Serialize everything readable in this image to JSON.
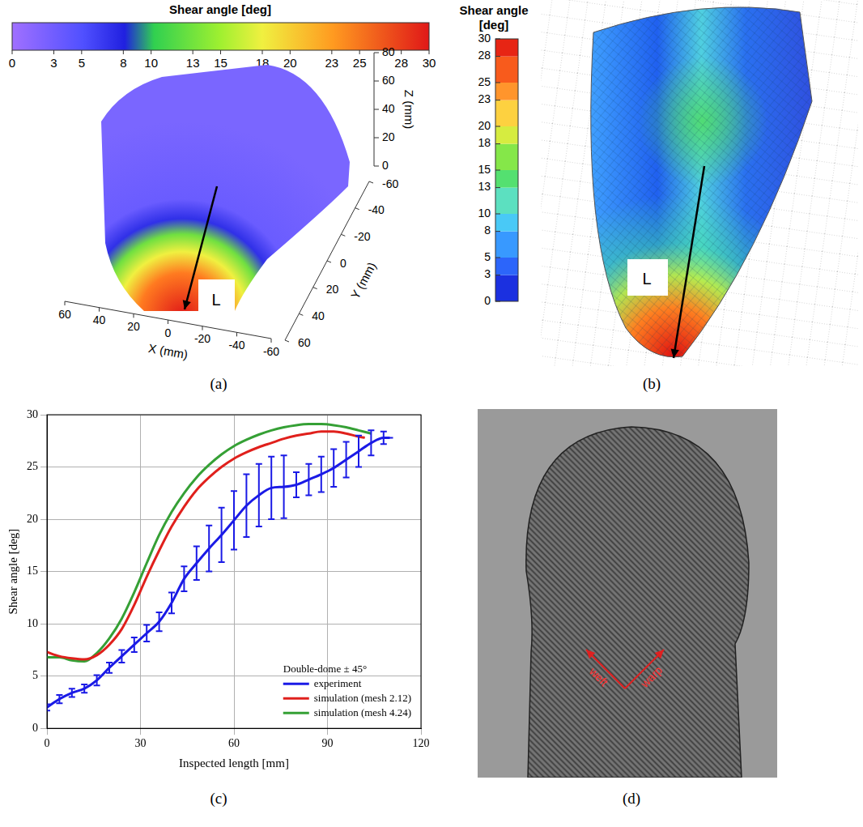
{
  "panels": {
    "a": {
      "label": "(a)",
      "type": "3d_contour_map",
      "colorbar": {
        "title": "Shear angle [deg]",
        "range": [
          0,
          30
        ],
        "ticks": [
          0,
          3,
          5,
          8,
          10,
          13,
          15,
          18,
          20,
          23,
          25,
          28,
          30
        ]
      },
      "axes": {
        "x": {
          "title": "X (mm)",
          "ticks": [
            60,
            40,
            20,
            0,
            -20,
            -40,
            -60
          ]
        },
        "y": {
          "title": "Y (mm)",
          "ticks": [
            60,
            40,
            20,
            0,
            -20,
            -40,
            -60
          ]
        },
        "z": {
          "title": "Z (mm)",
          "ticks": [
            0,
            20,
            40,
            60,
            80
          ]
        }
      },
      "annotations": [
        "L"
      ]
    },
    "b": {
      "label": "(b)",
      "type": "contour_map",
      "colorbar": {
        "title": "Shear angle [deg]",
        "range": [
          0,
          30
        ],
        "ticks": [
          30,
          28,
          25,
          23,
          20,
          18,
          15,
          13,
          10,
          8,
          5,
          3,
          0
        ]
      },
      "annotations": [
        "L"
      ]
    },
    "d": {
      "label": "(d)",
      "type": "photograph",
      "annotations": [
        "weft",
        "warp"
      ]
    }
  },
  "chart_data": {
    "label": "(c)",
    "type": "line",
    "annotation": "Double-dome ± 45°",
    "x_label": "Inspected length [mm]",
    "y_label": "Shear angle [deg]",
    "xlim": [
      0,
      120
    ],
    "xticks": [
      0,
      30,
      60,
      90,
      120
    ],
    "ylim": [
      0,
      30
    ],
    "yticks": [
      0,
      5,
      10,
      15,
      20,
      25,
      30
    ],
    "grid": true,
    "legend": "lower right",
    "series": [
      {
        "name": "experiment",
        "color": "#1a1ae6",
        "x": [
          0,
          4,
          8,
          12,
          16,
          20,
          24,
          28,
          32,
          36,
          40,
          44,
          48,
          52,
          56,
          60,
          64,
          68,
          72,
          76,
          80,
          84,
          88,
          92,
          96,
          100,
          104,
          108,
          110
        ],
        "values": [
          2.0,
          2.8,
          3.4,
          3.8,
          4.6,
          5.8,
          6.9,
          8.0,
          9.1,
          10.2,
          12.0,
          14.3,
          15.8,
          17.2,
          18.5,
          19.9,
          21.3,
          22.3,
          23.0,
          23.1,
          23.3,
          23.8,
          24.3,
          24.9,
          25.7,
          26.5,
          27.3,
          27.8,
          27.8
        ],
        "errors": [
          0.3,
          0.4,
          0.4,
          0.4,
          0.5,
          0.5,
          0.6,
          0.7,
          0.8,
          0.9,
          1.0,
          1.2,
          1.6,
          2.2,
          2.6,
          2.8,
          3.0,
          3.0,
          3.0,
          3.0,
          1.2,
          1.5,
          1.7,
          1.8,
          1.7,
          1.5,
          1.2,
          0.6,
          0
        ]
      },
      {
        "name": "simulation (mesh 2.12)",
        "color": "#e0201c",
        "x": [
          0,
          4,
          8,
          12,
          16,
          20,
          24,
          28,
          32,
          36,
          40,
          44,
          48,
          52,
          56,
          60,
          64,
          68,
          72,
          76,
          80,
          84,
          88,
          92,
          96,
          100,
          102
        ],
        "values": [
          7.3,
          6.9,
          6.7,
          6.6,
          7.0,
          8.0,
          9.5,
          11.8,
          14.5,
          17.0,
          19.3,
          21.2,
          22.8,
          24.0,
          25.0,
          25.8,
          26.4,
          26.9,
          27.3,
          27.7,
          28.0,
          28.2,
          28.4,
          28.4,
          28.2,
          27.9,
          27.8
        ]
      },
      {
        "name": "simulation (mesh 4.24)",
        "color": "#35a035",
        "x": [
          0,
          4,
          8,
          12,
          16,
          20,
          24,
          28,
          32,
          36,
          40,
          44,
          48,
          52,
          56,
          60,
          64,
          68,
          72,
          76,
          80,
          84,
          88,
          92,
          96,
          100,
          104
        ],
        "values": [
          6.8,
          6.8,
          6.5,
          6.4,
          7.2,
          8.6,
          10.5,
          13.0,
          15.8,
          18.5,
          20.7,
          22.5,
          24.0,
          25.2,
          26.2,
          27.0,
          27.6,
          28.1,
          28.5,
          28.8,
          29.0,
          29.1,
          29.1,
          29.0,
          28.8,
          28.5,
          28.2
        ]
      }
    ]
  }
}
